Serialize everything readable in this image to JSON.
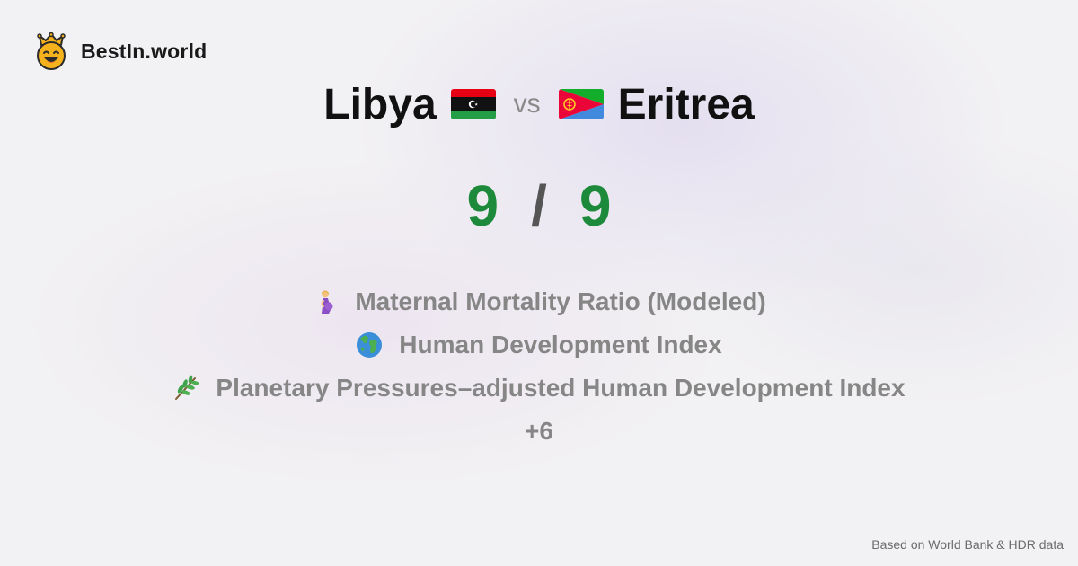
{
  "brand": {
    "name": "BestIn.world",
    "logo_icon": "crowned-smiley-icon"
  },
  "comparison": {
    "left": {
      "name": "Libya",
      "flag_icon": "libya-flag-icon"
    },
    "vs": "vs",
    "right": {
      "name": "Eritrea",
      "flag_icon": "eritrea-flag-icon"
    }
  },
  "score": {
    "left": "9",
    "separator": "/",
    "right": "9",
    "color": "#1c8a3a"
  },
  "metrics": [
    {
      "icon": "pregnant-woman-icon",
      "label": "Maternal Mortality Ratio (Modeled)"
    },
    {
      "icon": "globe-icon",
      "label": "Human Development Index"
    },
    {
      "icon": "herb-icon",
      "label": "Planetary Pressures–adjusted Human Development Index"
    }
  ],
  "more": "+6",
  "footer": "Based on World Bank & HDR data"
}
